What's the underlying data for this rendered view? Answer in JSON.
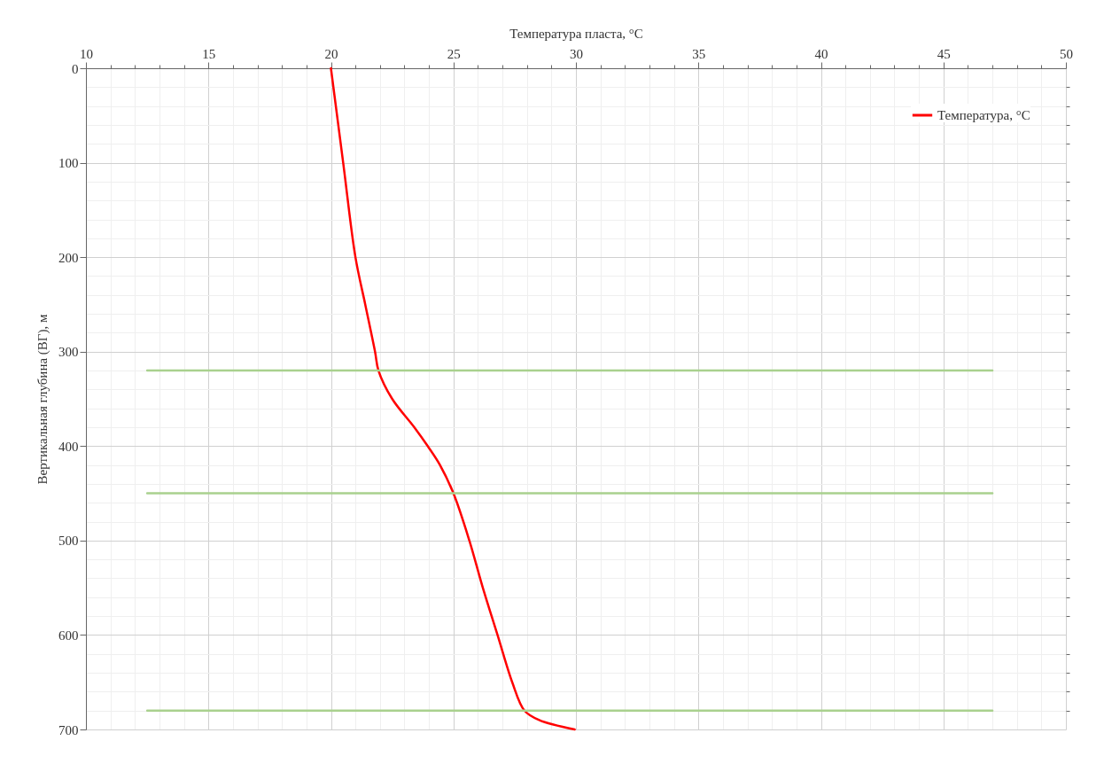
{
  "chart_data": {
    "type": "line",
    "xlabel": "Температура пласта, °C",
    "ylabel": "Вертикальная глубина (ВГ), м",
    "xlim": [
      10,
      50
    ],
    "xticks": [
      10,
      15,
      20,
      25,
      30,
      35,
      40,
      45,
      50
    ],
    "ylim": [
      700,
      0
    ],
    "yticks": [
      0,
      100,
      200,
      300,
      400,
      500,
      600,
      700
    ],
    "grid": true,
    "legend": "top right",
    "line_style": "solid",
    "series": [
      {
        "name": "Температура, °C",
        "color": "#ff0000",
        "x": [
          20,
          20.5,
          21.0,
          21.4,
          21.8,
          21.94,
          22.5,
          23.4,
          23.95,
          24.45,
          25.0,
          25.65,
          26.2,
          26.8,
          27.4,
          27.9,
          28.5,
          29.95
        ],
        "values": [
          0,
          100,
          200,
          250,
          300,
          320,
          350,
          380,
          400,
          420,
          450,
          500,
          550,
          600,
          650,
          680,
          690,
          700
        ]
      },
      {
        "color": "#a9d18e",
        "x": [
          12.5,
          47
        ],
        "values": [
          320,
          320
        ]
      },
      {
        "color": "#a9d18e",
        "x": [
          12.5,
          47
        ],
        "values": [
          450,
          450
        ]
      },
      {
        "color": "#a9d18e",
        "x": [
          12.5,
          47
        ],
        "values": [
          680,
          680
        ]
      }
    ]
  }
}
